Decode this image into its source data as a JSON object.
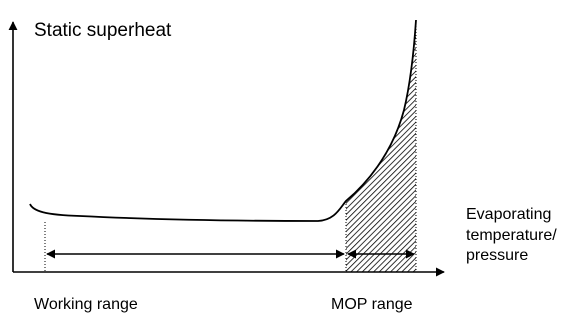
{
  "title": "Static superheat",
  "x_axis_label": [
    "Evaporating",
    "temperature/",
    "pressure"
  ],
  "ranges": {
    "working": "Working range",
    "mop": "MOP range"
  },
  "colors": {
    "line": "#000000",
    "hatch": "#000000",
    "background": "#ffffff"
  }
}
